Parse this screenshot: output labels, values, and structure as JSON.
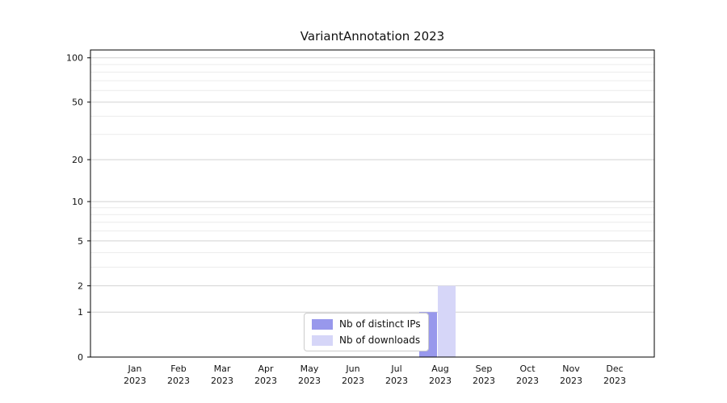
{
  "chart": {
    "title": "VariantAnnotation 2023",
    "chart_data": {
      "type": "bar",
      "scale": "log1p",
      "grid": "horizontal",
      "legend_position": "lower center",
      "categories": [
        [
          "Jan",
          "2023"
        ],
        [
          "Feb",
          "2023"
        ],
        [
          "Mar",
          "2023"
        ],
        [
          "Apr",
          "2023"
        ],
        [
          "May",
          "2023"
        ],
        [
          "Jun",
          "2023"
        ],
        [
          "Jul",
          "2023"
        ],
        [
          "Aug",
          "2023"
        ],
        [
          "Sep",
          "2023"
        ],
        [
          "Oct",
          "2023"
        ],
        [
          "Nov",
          "2023"
        ],
        [
          "Dec",
          "2023"
        ]
      ],
      "series": [
        {
          "name": "Nb of distinct IPs",
          "color": "#9898ec",
          "values": [
            0,
            0,
            0,
            0,
            0,
            0,
            0,
            1,
            0,
            0,
            0,
            0
          ]
        },
        {
          "name": "Nb of downloads",
          "color": "#d6d6f8",
          "values": [
            0,
            0,
            0,
            0,
            0,
            0,
            0,
            2,
            0,
            0,
            0,
            0
          ]
        }
      ],
      "yticks": [
        0,
        1,
        2,
        5,
        10,
        20,
        50,
        100
      ],
      "minor_yticks": [
        3,
        4,
        6,
        7,
        8,
        9,
        30,
        40,
        60,
        70,
        80,
        90
      ],
      "ylim": [
        0,
        113
      ],
      "xlabel": "",
      "ylabel": ""
    }
  }
}
